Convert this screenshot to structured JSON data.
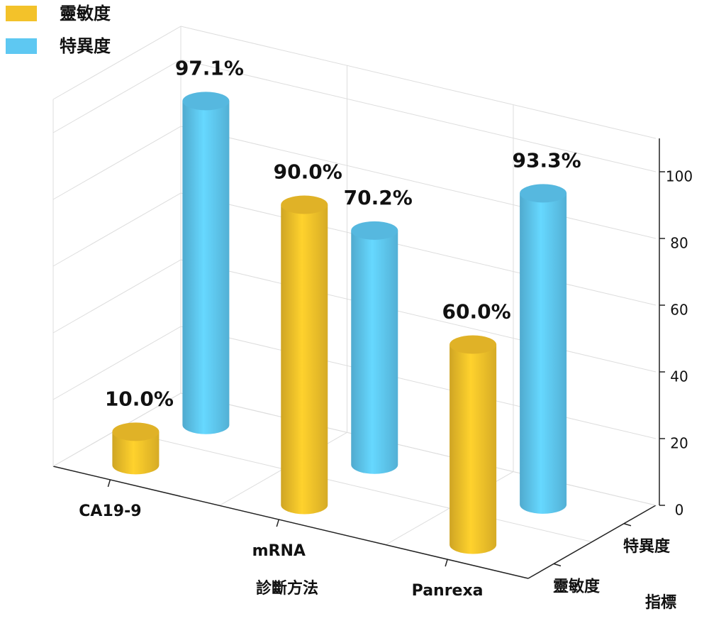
{
  "chart_data": {
    "type": "bar3d",
    "x_label": "診斷方法",
    "depth_label": "指標",
    "categories": [
      "CA19-9",
      "mRNA",
      "Panrexa"
    ],
    "series": [
      {
        "name": "靈敏度",
        "color": "#f3c22a",
        "values": [
          10.0,
          90.0,
          60.0
        ],
        "value_labels": [
          "10.0%",
          "90.0%",
          "60.0%"
        ]
      },
      {
        "name": "特異度",
        "color": "#5ec8f2",
        "values": [
          97.1,
          70.2,
          93.3
        ],
        "value_labels": [
          "97.1%",
          "70.2%",
          "93.3%"
        ]
      }
    ],
    "ylim": [
      0,
      110
    ],
    "yticks": [
      0,
      20,
      40,
      60,
      80,
      100
    ],
    "grid": true,
    "legend": "upper left"
  }
}
